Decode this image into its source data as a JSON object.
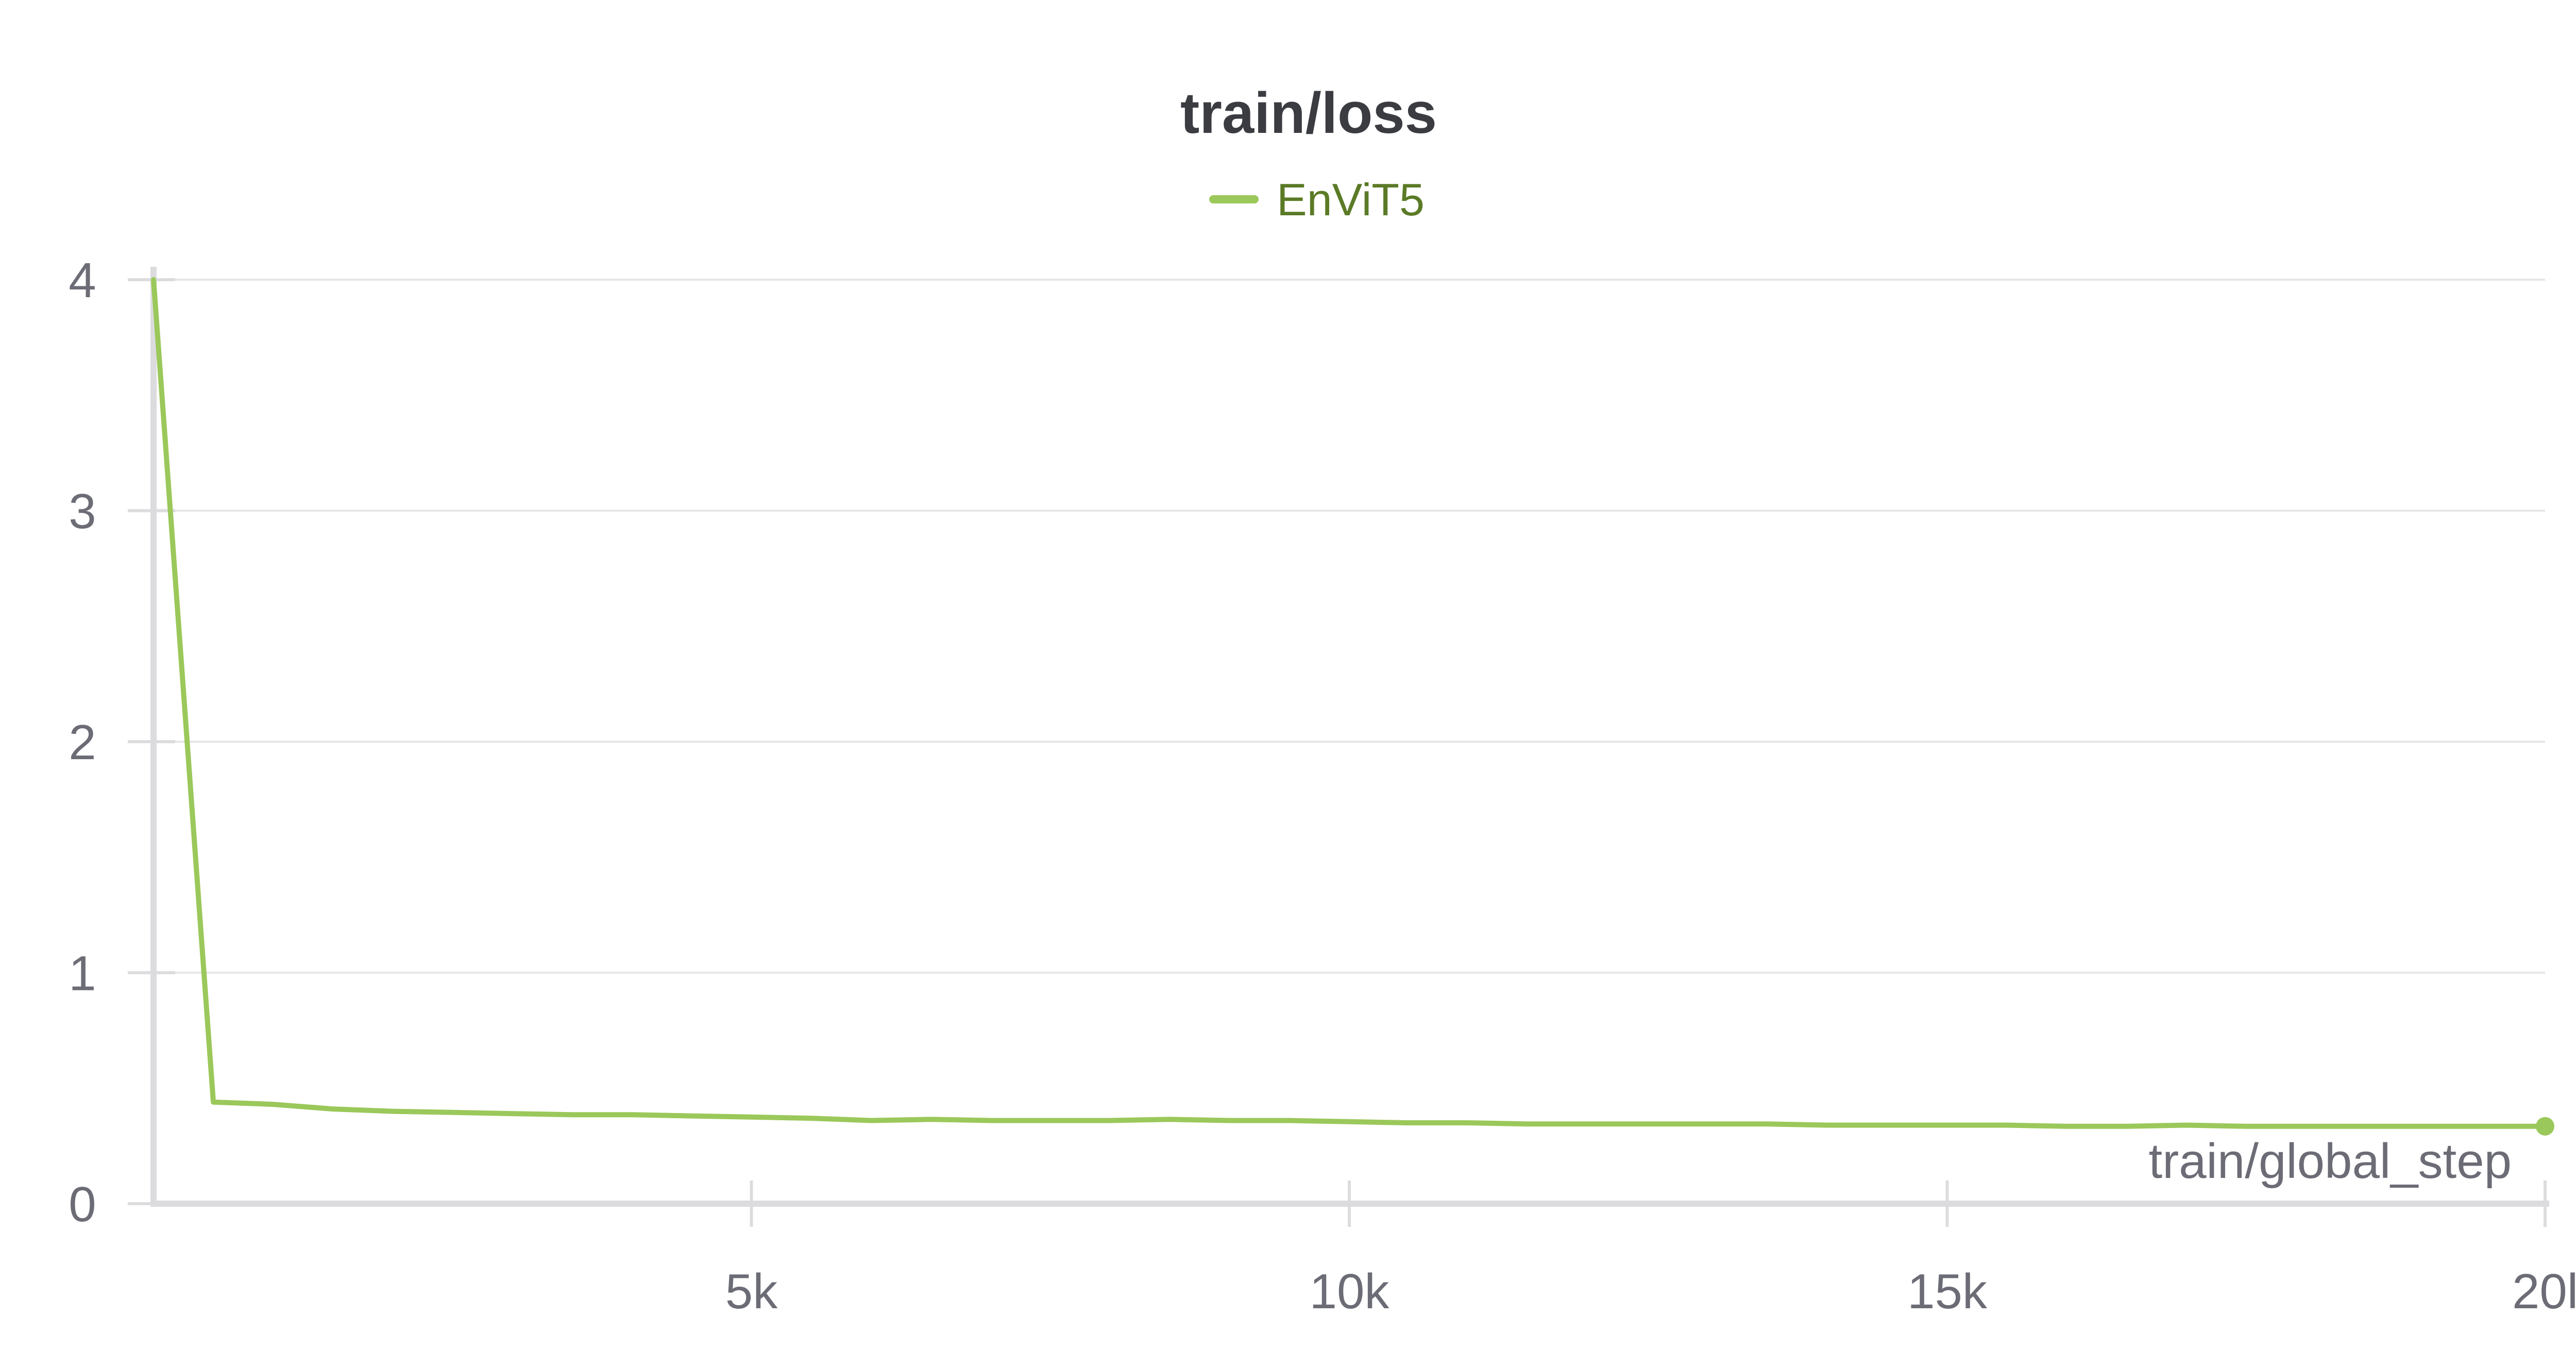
{
  "chart_data": {
    "type": "line",
    "title": "train/loss",
    "xlabel": "train/global_step",
    "ylabel": "",
    "legend_position": "top-center",
    "grid": true,
    "xlim": [
      0,
      20000
    ],
    "ylim": [
      0,
      4
    ],
    "x_ticks": [
      5000,
      10000,
      15000,
      20000
    ],
    "x_tick_labels": [
      "5k",
      "10k",
      "15k",
      "20l"
    ],
    "y_ticks": [
      0,
      1,
      2,
      3,
      4
    ],
    "y_tick_labels": [
      "0",
      "1",
      "2",
      "3",
      "4"
    ],
    "colors": {
      "series": "#9bc85a",
      "legend_text": "#5b7a26",
      "title": "#3b3c42",
      "tick": "#6b6c75",
      "grid": "#e6e6e9",
      "axis": "#dcdcdf"
    },
    "series": [
      {
        "name": "EnViT5",
        "x": [
          0,
          500,
          1000,
          1500,
          2000,
          2500,
          3000,
          3500,
          4000,
          4500,
          5000,
          5500,
          6000,
          6500,
          7000,
          7500,
          8000,
          8500,
          9000,
          9500,
          10000,
          10500,
          11000,
          11500,
          12000,
          12500,
          13000,
          13500,
          14000,
          14500,
          15000,
          15500,
          16000,
          16500,
          17000,
          17500,
          18000,
          18500,
          19000,
          19500,
          20000
        ],
        "y": [
          4.0,
          0.44,
          0.43,
          0.41,
          0.4,
          0.395,
          0.39,
          0.385,
          0.385,
          0.38,
          0.375,
          0.37,
          0.36,
          0.365,
          0.36,
          0.36,
          0.36,
          0.365,
          0.36,
          0.36,
          0.355,
          0.35,
          0.35,
          0.345,
          0.345,
          0.345,
          0.345,
          0.345,
          0.34,
          0.34,
          0.34,
          0.34,
          0.335,
          0.335,
          0.34,
          0.335,
          0.335,
          0.335,
          0.335,
          0.335,
          0.335
        ]
      }
    ]
  }
}
